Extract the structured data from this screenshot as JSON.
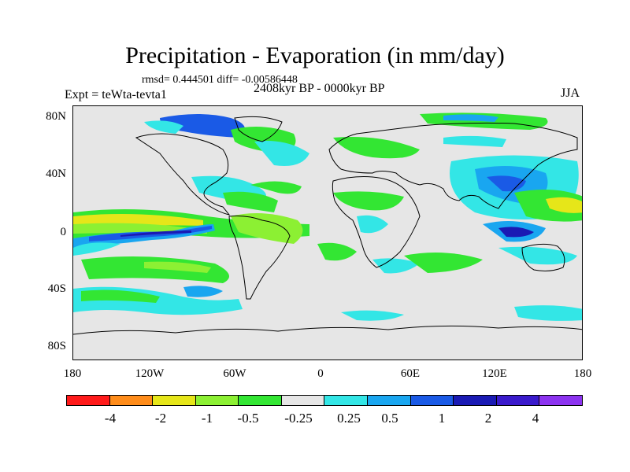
{
  "title": "Precipitation - Evaporation (in mm/day)",
  "stats": "rmsd= 0.444501 diff= -0.00586448",
  "subtitle": "2408kyr BP - 0000kyr BP",
  "experiment": "Expt = teWta-tevta1",
  "season": "JJA",
  "map": {
    "background_color": "#e6e6e6",
    "lat_labels": [
      "80N",
      "40N",
      "0",
      "40S",
      "80S"
    ],
    "lon_labels": [
      "180",
      "120W",
      "60W",
      "0",
      "60E",
      "120E",
      "180"
    ]
  },
  "colorbar": {
    "colors": [
      "#ff1a1a",
      "#ff8c1a",
      "#e6e619",
      "#8cf033",
      "#33e633",
      "#e6e6e6",
      "#33e6e6",
      "#19a6f0",
      "#1a5ae6",
      "#1a1ab4",
      "#3a1acc",
      "#8c33f0"
    ],
    "labels": [
      "-4",
      "-2",
      "-1",
      "-0.5",
      "-0.25",
      "0.25",
      "0.5",
      "1",
      "2",
      "4"
    ]
  }
}
